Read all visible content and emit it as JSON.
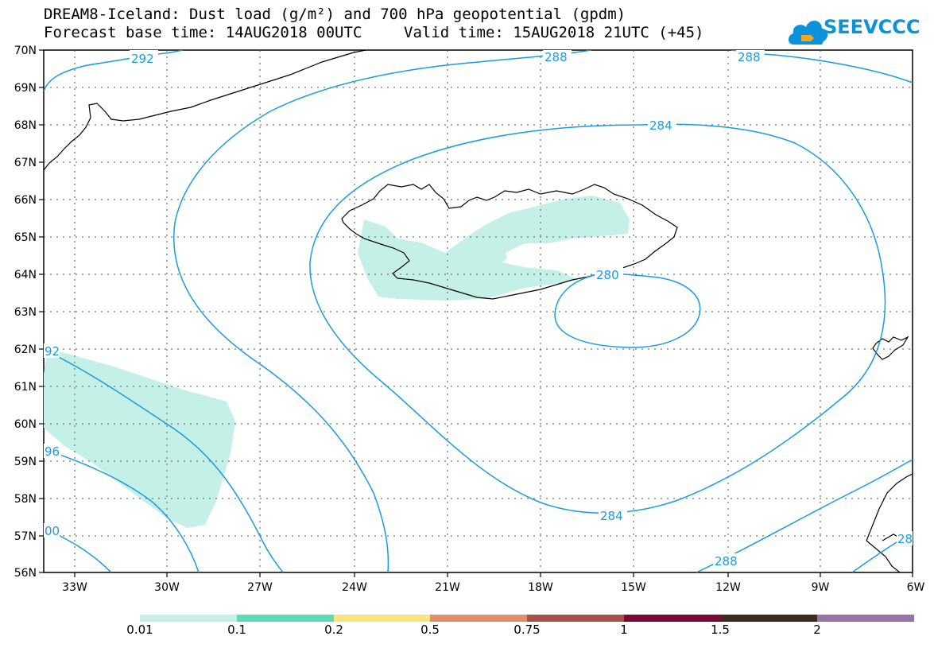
{
  "header": {
    "title": "DREAM8-Iceland: Dust load (g/m²) and 700 hPa geopotential (gpdm)",
    "base_time": "Forecast base time: 14AUG2018 00UTC",
    "valid_time": "Valid time: 15AUG2018 21UTC (+45)"
  },
  "logo": {
    "text": "SEEVCCC",
    "icon": "cloud-icon",
    "color": "#0b93d9"
  },
  "map": {
    "lat_labels": [
      "70N",
      "69N",
      "68N",
      "67N",
      "66N",
      "65N",
      "64N",
      "63N",
      "62N",
      "61N",
      "60N",
      "59N",
      "58N",
      "57N",
      "56N"
    ],
    "lon_labels": [
      "33W",
      "30W",
      "27W",
      "24W",
      "21W",
      "18W",
      "15W",
      "12W",
      "9W",
      "6W"
    ],
    "contour_labels": {
      "c292_top": "292",
      "c288_top": "288",
      "c288_top_right": "288",
      "c284_north": "284",
      "c280": "280",
      "c284_south": "284",
      "c288_bottom": "288",
      "c292_left": "92",
      "c296_left": "96",
      "c300_left": "00",
      "c_right_edge": "28"
    },
    "contour_color": "#1a9be0",
    "dust_fill_color": "#c4f0e8"
  },
  "colorbar": {
    "colors": [
      "#c4f0e8",
      "#5cdcb4",
      "#f6e57a",
      "#e58d68",
      "#a8504a",
      "#7a0a32",
      "#3e2a1e",
      "#9a72a4"
    ],
    "tick_labels": [
      "0.01",
      "0.1",
      "0.2",
      "0.5",
      "0.75",
      "1",
      "1.5",
      "2"
    ]
  }
}
